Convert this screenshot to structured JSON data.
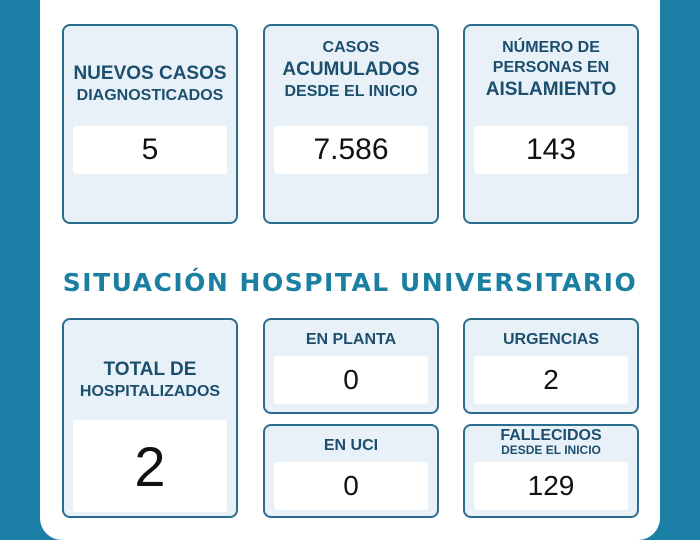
{
  "stats": [
    {
      "line1": "NUEVOS CASOS",
      "line2": "DIAGNOSTICADOS",
      "value": "5"
    },
    {
      "line1": "CASOS",
      "line2": "ACUMULADOS",
      "line3": "DESDE EL INICIO",
      "value": "7.586"
    },
    {
      "line1": "NÚMERO DE",
      "line2": "PERSONAS EN",
      "line3": "AISLAMIENTO",
      "value": "143"
    }
  ],
  "hospital": {
    "title": "SITUACIÓN HOSPITAL UNIVERSITARIO",
    "total": {
      "line1": "TOTAL DE",
      "line2": "HOSPITALIZADOS",
      "value": "2"
    },
    "planta": {
      "label": "EN PLANTA",
      "value": "0"
    },
    "urgencias": {
      "label": "URGENCIAS",
      "value": "2"
    },
    "uci": {
      "label": "EN UCI",
      "value": "0"
    },
    "fallecidos": {
      "line1": "FALLECIDOS",
      "line2": "DESDE EL INICIO",
      "value": "129"
    }
  }
}
